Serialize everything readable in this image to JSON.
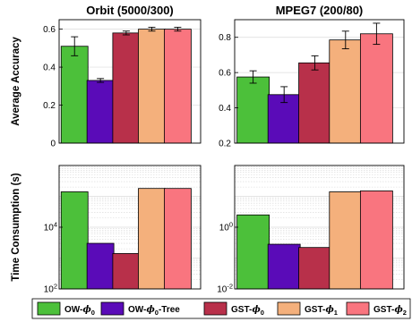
{
  "chart_data": [
    {
      "type": "bar",
      "title": "Orbit (5000/300)",
      "ylabel": "Average Accuracy",
      "ylim": [
        0,
        0.65
      ],
      "yscale": "linear",
      "yticks": [
        0,
        0.2,
        0.4,
        0.6
      ],
      "ytick_labels": [
        "0",
        "0.2",
        "0.4",
        "0.6"
      ],
      "grid": true,
      "values": [
        0.51,
        0.33,
        0.58,
        0.6,
        0.6
      ],
      "errors": [
        0.05,
        0.01,
        0.01,
        0.01,
        0.01
      ]
    },
    {
      "type": "bar",
      "title": "MPEG7 (200/80)",
      "ylabel": "",
      "ylim": [
        0.2,
        0.9
      ],
      "yscale": "linear",
      "yticks": [
        0.2,
        0.4,
        0.6,
        0.8
      ],
      "ytick_labels": [
        "0.2",
        "0.4",
        "0.6",
        "0.8"
      ],
      "grid": true,
      "values": [
        0.575,
        0.475,
        0.655,
        0.785,
        0.82
      ],
      "errors": [
        0.035,
        0.045,
        0.04,
        0.05,
        0.06
      ]
    },
    {
      "type": "bar",
      "title": "",
      "ylabel": "Time Consumption (s)",
      "ylim": [
        100,
        1000000
      ],
      "yscale": "log",
      "yticks": [
        100,
        10000
      ],
      "ytick_labels": [
        {
          "base": "10",
          "exp": "2"
        },
        {
          "base": "10",
          "exp": "4"
        }
      ],
      "grid": true,
      "values": [
        140000,
        3000,
        1400,
        180000,
        180000
      ]
    },
    {
      "type": "bar",
      "title": "",
      "ylabel": "",
      "ylim": [
        0.01,
        100
      ],
      "yscale": "log",
      "yticks": [
        0.01,
        1
      ],
      "ytick_labels": [
        {
          "base": "10",
          "exp": "-2"
        },
        {
          "base": "10",
          "exp": "0"
        }
      ],
      "grid": true,
      "values": [
        2.5,
        0.28,
        0.22,
        14,
        15
      ]
    }
  ],
  "legend": {
    "placement": "bottom",
    "entries": [
      {
        "parts": [
          "OW-",
          "ϕ",
          "0",
          ""
        ],
        "color": "#4cc03a"
      },
      {
        "parts": [
          "OW-",
          "ϕ",
          "0",
          "-Tree"
        ],
        "color": "#5a0bb8"
      },
      {
        "parts": [
          "GST-",
          "ϕ",
          "0",
          ""
        ],
        "color": "#b8304a"
      },
      {
        "parts": [
          "GST-",
          "ϕ",
          "1",
          ""
        ],
        "color": "#f4b07c"
      },
      {
        "parts": [
          "GST-",
          "ϕ",
          "2",
          ""
        ],
        "color": "#f9757f"
      }
    ]
  }
}
